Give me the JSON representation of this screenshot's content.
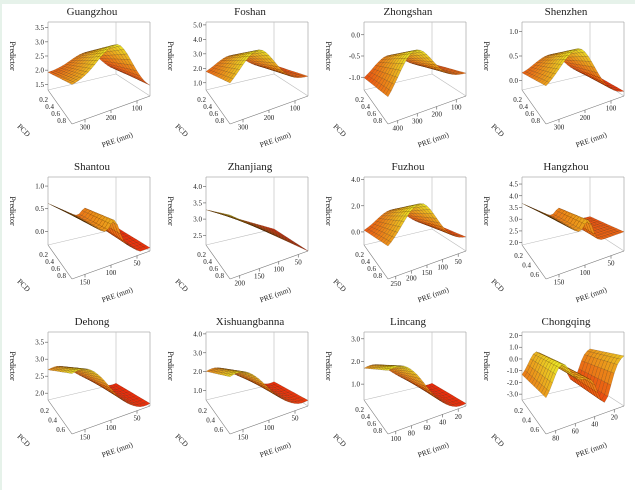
{
  "figure": {
    "description": "3D response surfaces of Predictor vs PCD and PRE (mm) for 12 cities"
  },
  "chart_data": [
    {
      "type": "surface",
      "title": "Guangzhou",
      "zlabel": "Predictor",
      "xlabel": "PCD",
      "ylabel": "PRE (mm)",
      "z_ticks": [
        "1.5",
        "2.0",
        "2.5",
        "3.0",
        "3.5"
      ],
      "x_ticks": [
        "0.2",
        "0.4",
        "0.6",
        "0.8"
      ],
      "y_ticks": [
        "300",
        "200",
        "100"
      ],
      "zlim": [
        1.3,
        3.7
      ],
      "shape": "peak-mid",
      "peak_pos": 0.55,
      "low_end": 0.05,
      "start": 0.6
    },
    {
      "type": "surface",
      "title": "Foshan",
      "zlabel": "Predictor",
      "xlabel": "PCD",
      "ylabel": "PRE (mm)",
      "z_ticks": [
        "1.0",
        "2.0",
        "3.0",
        "4.0",
        "5.0"
      ],
      "x_ticks": [
        "0.2",
        "0.4",
        "0.6",
        "0.8"
      ],
      "y_ticks": [
        "300",
        "200",
        "100"
      ],
      "zlim": [
        0.5,
        5.2
      ],
      "shape": "peak-mid",
      "peak_pos": 0.35,
      "low_end": 0.3,
      "start": 0.5
    },
    {
      "type": "surface",
      "title": "Zhongshan",
      "zlabel": "Predictor",
      "xlabel": "PCD",
      "ylabel": "PRE (mm)",
      "z_ticks": [
        "-1.0",
        "-0.5",
        "0.0"
      ],
      "x_ticks": [
        "0.2",
        "0.4",
        "0.6",
        "0.8"
      ],
      "y_ticks": [
        "400",
        "300",
        "200",
        "100"
      ],
      "zlim": [
        -1.3,
        0.3
      ],
      "shape": "peak-mid",
      "peak_pos": 0.35,
      "low_end": 0.35,
      "start": 0.2
    },
    {
      "type": "surface",
      "title": "Shenzhen",
      "zlabel": "Predictor",
      "xlabel": "PCD",
      "ylabel": "PRE (mm)",
      "z_ticks": [
        "0.0",
        "0.5",
        "1.0"
      ],
      "x_ticks": [
        "0.2",
        "0.4",
        "0.6",
        "0.8"
      ],
      "y_ticks": [
        "300",
        "200",
        "100"
      ],
      "zlim": [
        -0.2,
        1.2
      ],
      "shape": "peak-mid",
      "peak_pos": 0.4,
      "low_end": 0.05,
      "start": 0.5
    },
    {
      "type": "surface",
      "title": "Shantou",
      "zlabel": "Predictor",
      "xlabel": "PCD",
      "ylabel": "PRE (mm)",
      "z_ticks": [
        "0.0",
        "0.5",
        "1.0"
      ],
      "x_ticks": [
        "0.2",
        "0.4",
        "0.6",
        "0.8"
      ],
      "y_ticks": [
        "150",
        "100",
        "50"
      ],
      "zlim": [
        -0.3,
        1.2
      ],
      "shape": "decline-step",
      "peak_pos": 0.0,
      "low_end": 0.05,
      "start": 1.0
    },
    {
      "type": "surface",
      "title": "Zhanjiang",
      "zlabel": "Predictor",
      "xlabel": "PCD",
      "ylabel": "PRE (mm)",
      "z_ticks": [
        "2.5",
        "3.0",
        "3.5",
        "4.0"
      ],
      "x_ticks": [
        "0.2",
        "0.4",
        "0.6",
        "0.8"
      ],
      "y_ticks": [
        "200",
        "150",
        "100",
        "50"
      ],
      "zlim": [
        2.2,
        4.3
      ],
      "shape": "linear-decline",
      "peak_pos": 0.0,
      "low_end": 0.0,
      "start": 1.0
    },
    {
      "type": "surface",
      "title": "Fuzhou",
      "zlabel": "Predictor",
      "xlabel": "PCD",
      "ylabel": "PRE (mm)",
      "z_ticks": [
        "0.0",
        "2.0",
        "4.0"
      ],
      "x_ticks": [
        "0.2",
        "0.4",
        "0.6",
        "0.8"
      ],
      "y_ticks": [
        "250",
        "200",
        "150",
        "100",
        "50"
      ],
      "zlim": [
        -1.0,
        4.2
      ],
      "shape": "peak-mid",
      "peak_pos": 0.4,
      "low_end": 0.2,
      "start": 0.4
    },
    {
      "type": "surface",
      "title": "Hangzhou",
      "zlabel": "Predictor",
      "xlabel": "PCD",
      "ylabel": "PRE (mm)",
      "z_ticks": [
        "2.0",
        "2.5",
        "3.0",
        "3.5",
        "4.0",
        "4.5"
      ],
      "x_ticks": [
        "0.2",
        "0.4",
        "0.6"
      ],
      "y_ticks": [
        "150",
        "100",
        "50"
      ],
      "zlim": [
        1.9,
        4.8
      ],
      "shape": "decline-step",
      "peak_pos": 0.0,
      "low_end": 0.3,
      "start": 1.0
    },
    {
      "type": "surface",
      "title": "Dehong",
      "zlabel": "Predictor",
      "xlabel": "PCD",
      "ylabel": "PRE (mm)",
      "z_ticks": [
        "2.0",
        "2.5",
        "3.0",
        "3.5"
      ],
      "x_ticks": [
        "0.2",
        "0.4",
        "0.6"
      ],
      "y_ticks": [
        "150",
        "100",
        "50"
      ],
      "zlim": [
        1.8,
        3.8
      ],
      "shape": "plateau-decline",
      "peak_pos": 0.1,
      "low_end": 0.05,
      "start": 0.95
    },
    {
      "type": "surface",
      "title": "Xishuangbanna",
      "zlabel": "Predictor",
      "xlabel": "PCD",
      "ylabel": "PRE (mm)",
      "z_ticks": [
        "1.0",
        "2.0",
        "3.0",
        "4.0"
      ],
      "x_ticks": [
        "0.2",
        "0.4",
        "0.6"
      ],
      "y_ticks": [
        "150",
        "100",
        "50"
      ],
      "zlim": [
        0.5,
        4.1
      ],
      "shape": "plateau-decline",
      "peak_pos": 0.15,
      "low_end": 0.1,
      "start": 0.9
    },
    {
      "type": "surface",
      "title": "Lincang",
      "zlabel": "Predictor",
      "xlabel": "PCD",
      "ylabel": "PRE (mm)",
      "z_ticks": [
        "1.0",
        "2.0",
        "3.0"
      ],
      "x_ticks": [
        "0.2",
        "0.4",
        "0.6",
        "0.8"
      ],
      "y_ticks": [
        "100",
        "80",
        "60",
        "40",
        "20"
      ],
      "zlim": [
        0.3,
        3.3
      ],
      "shape": "plateau-decline",
      "peak_pos": 0.0,
      "low_end": 0.05,
      "start": 1.0
    },
    {
      "type": "surface",
      "title": "Chongqing",
      "zlabel": "Predictor",
      "xlabel": "PCD",
      "ylabel": "PRE (mm)",
      "z_ticks": [
        "-3.0",
        "-2.0",
        "-1.0",
        "0.0",
        "1.0",
        "2.0"
      ],
      "x_ticks": [
        "0.2",
        "0.4",
        "0.6"
      ],
      "y_ticks": [
        "80",
        "60",
        "40",
        "20"
      ],
      "zlim": [
        -3.5,
        2.3
      ],
      "shape": "peak-valley",
      "peak_pos": 0.2,
      "low_end": 0.7,
      "start": 0.7
    }
  ]
}
